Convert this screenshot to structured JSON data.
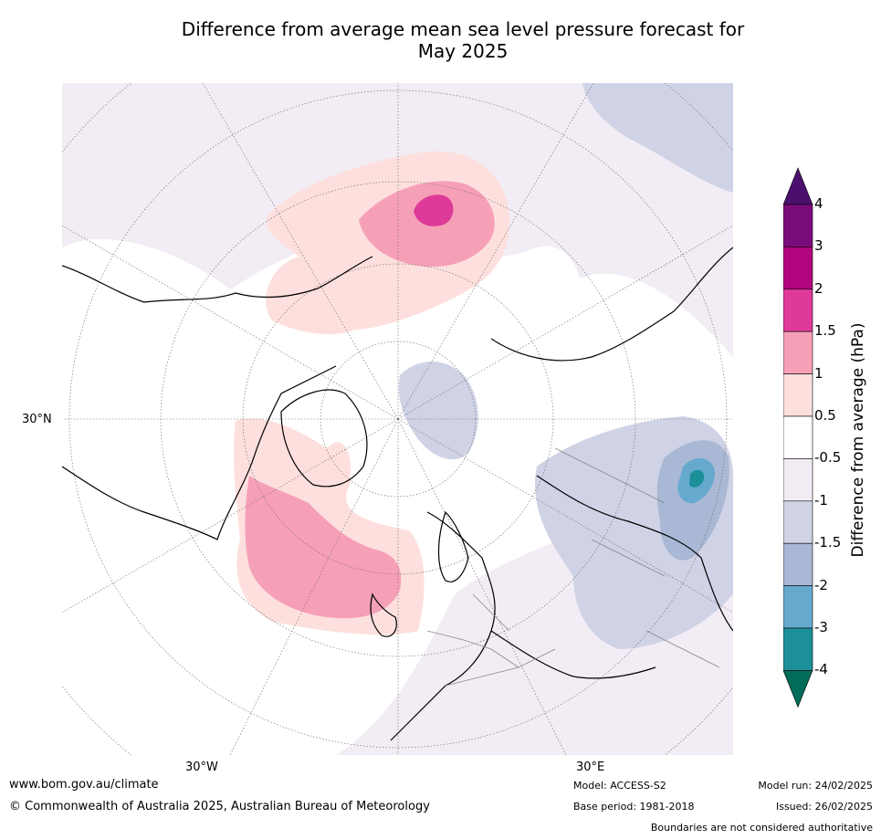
{
  "title_line1": "Difference from average mean sea level pressure forecast for",
  "title_line2": "May 2025",
  "axis_labels": {
    "lat_30n": "30°N",
    "lon_30w": "30°W",
    "lon_30e": "30°E"
  },
  "colorbar": {
    "title": "Difference from average (hPa)",
    "levels": [
      "4",
      "3",
      "2",
      "1.5",
      "1",
      "0.5",
      "-0.5",
      "-1",
      "-1.5",
      "-2",
      "-3",
      "-4"
    ],
    "colors": [
      "#4b0f6e",
      "#7a0c7a",
      "#b0057e",
      "#de3a9a",
      "#f6a0b8",
      "#fde0dd",
      "#ffffff",
      "#f2ecf4",
      "#d0d3e6",
      "#a8b8d5",
      "#66a9cf",
      "#1c9099",
      "#016c59"
    ]
  },
  "footer": {
    "website": "www.bom.gov.au/climate",
    "copyright": "© Commonwealth of Australia 2025, Australian Bureau of Meteorology",
    "model": "Model: ACCESS-S2",
    "base_period": "Base period: 1981-2018",
    "model_run": "Model run: 24/02/2025",
    "issued": "Issued: 26/02/2025",
    "disclaimer": "Boundaries are not considered authoritative"
  }
}
